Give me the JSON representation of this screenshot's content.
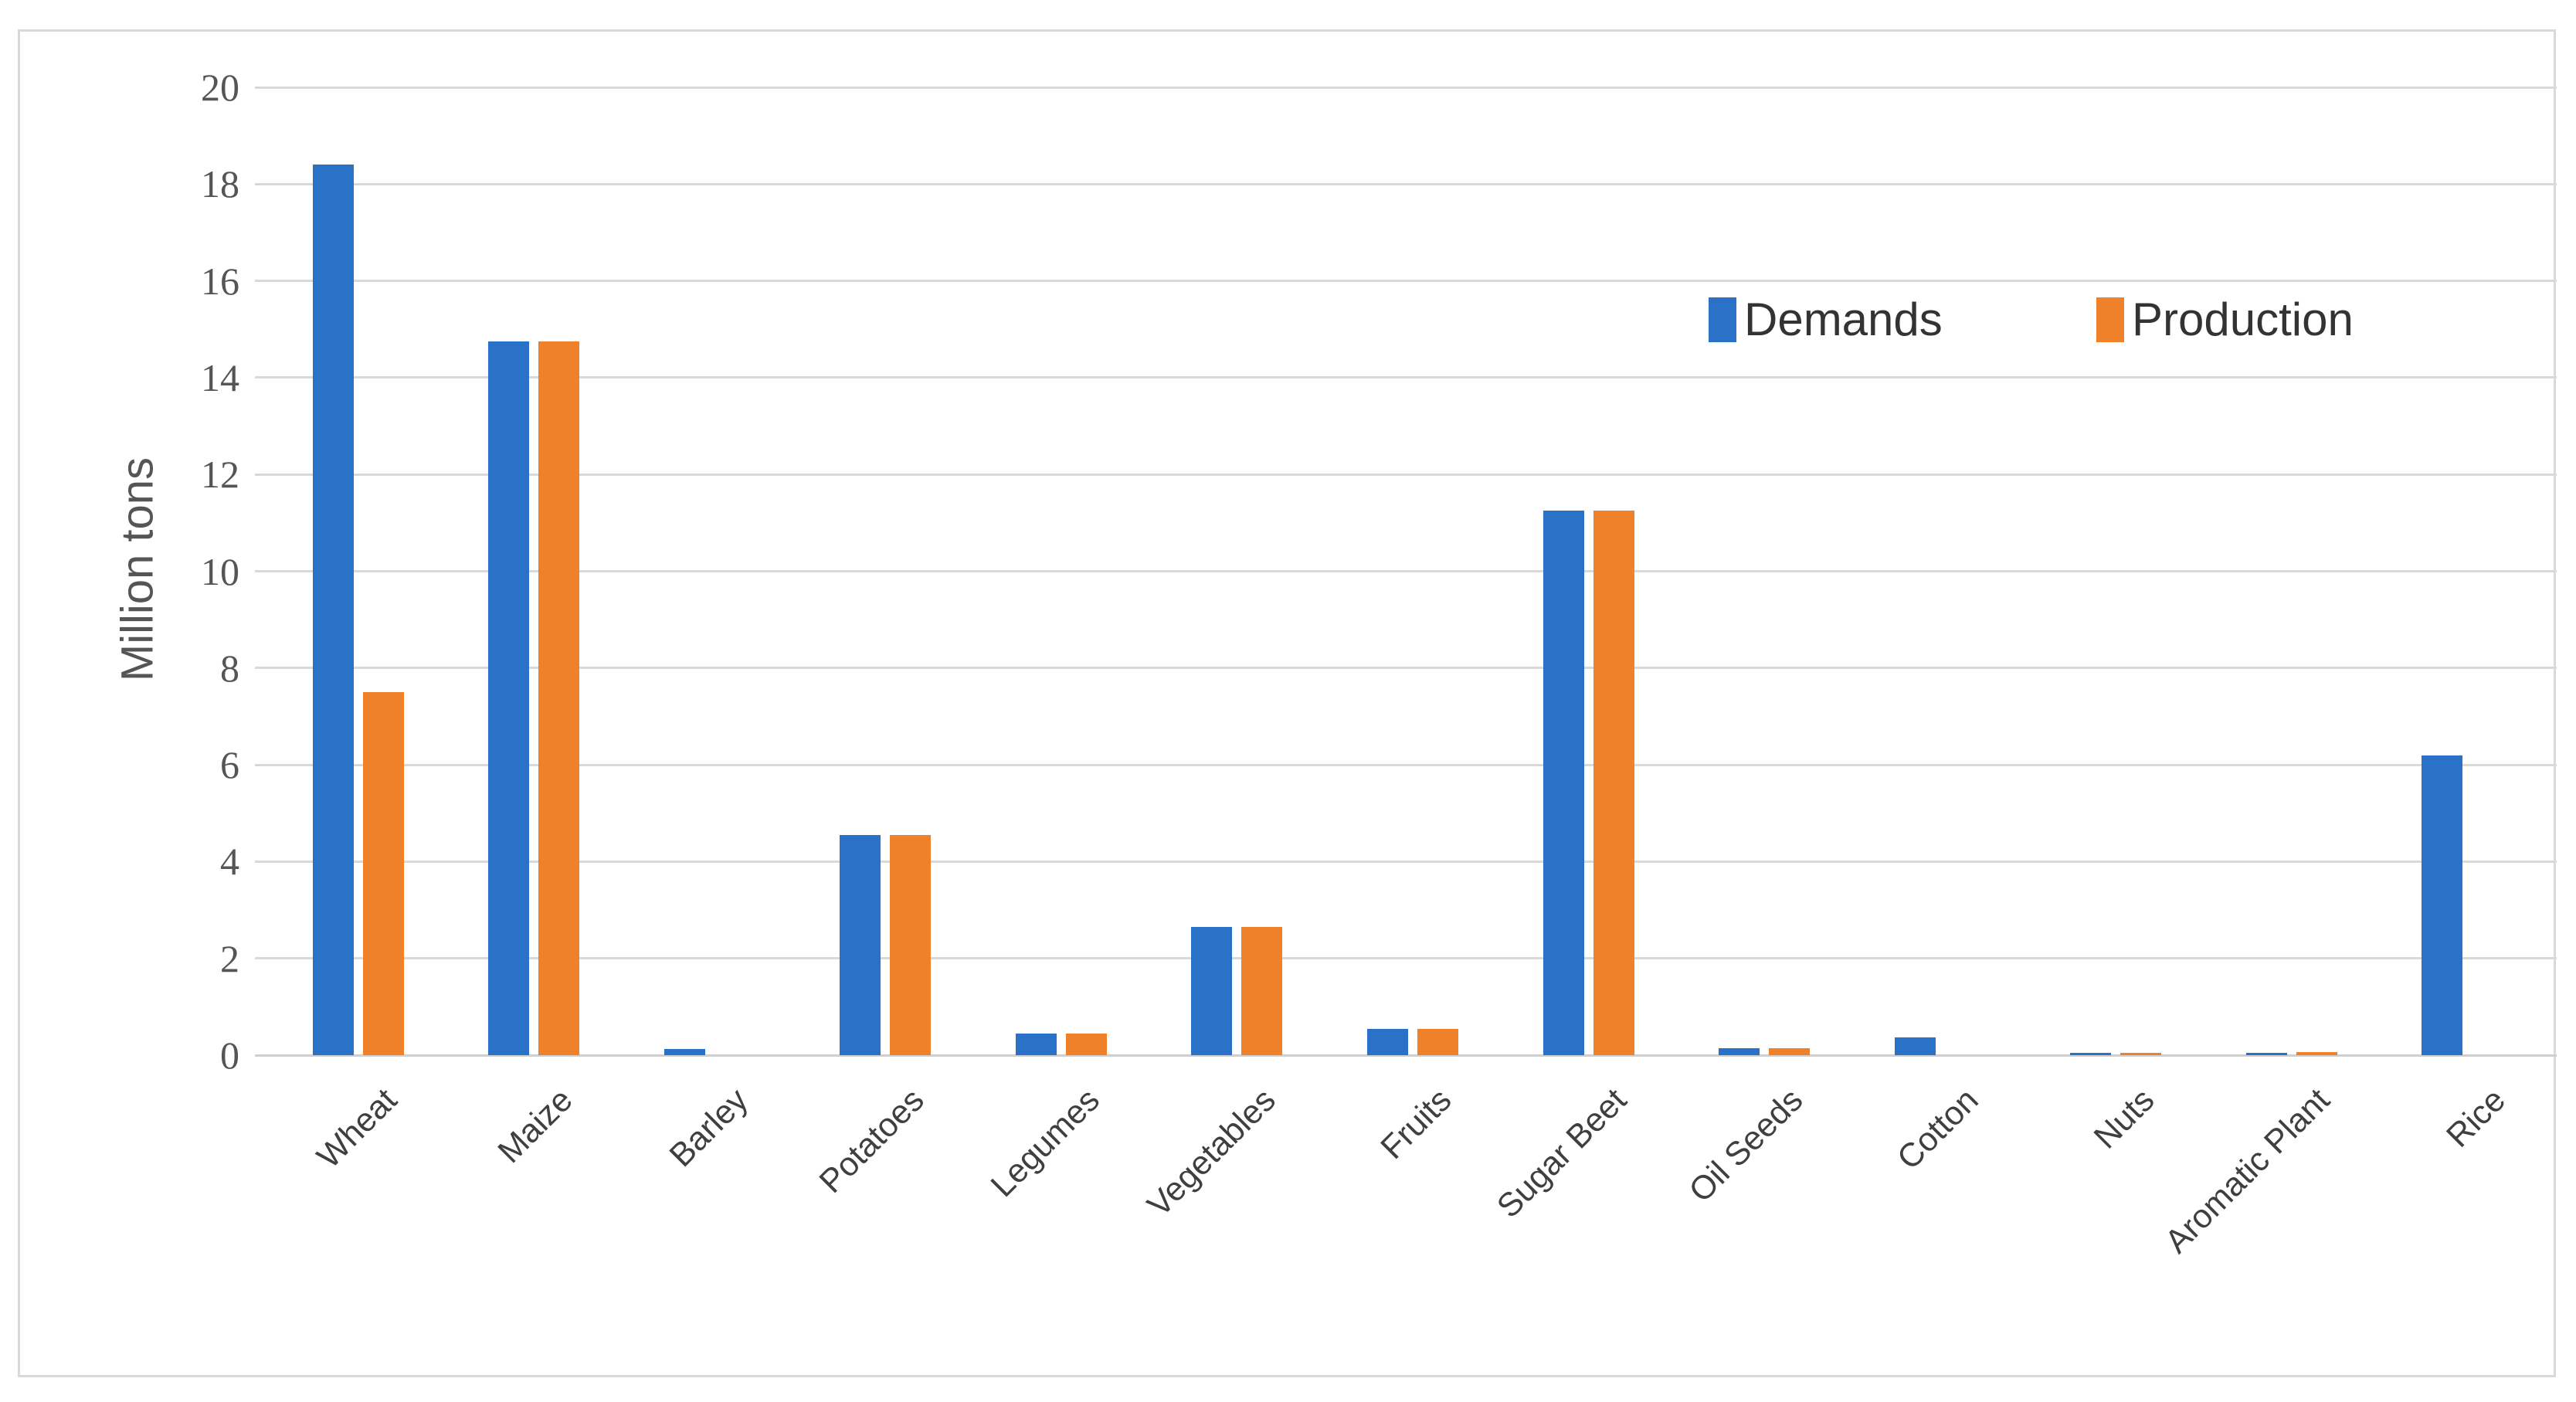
{
  "chart_data": {
    "type": "bar",
    "title": "",
    "ylabel": "Million tons",
    "xlabel": "",
    "ylim": [
      0,
      20
    ],
    "yticks": [
      0,
      2,
      4,
      6,
      8,
      10,
      12,
      14,
      16,
      18,
      20
    ],
    "grid": "horizontal",
    "gridline_color": "#D9D9D9",
    "legend_position": "top-right-inside",
    "categories": [
      "Wheat",
      "Maize",
      "Barley",
      "Potatoes",
      "Legumes",
      "Vegetables",
      "Fruits",
      "Sugar Beet",
      "Oil Seeds",
      "Cotton",
      "Nuts",
      "Aromatic Plant",
      "Rice"
    ],
    "series": [
      {
        "name": "Demands",
        "color": "#2A72C8",
        "values": [
          18.4,
          14.75,
          0.13,
          4.55,
          0.45,
          2.65,
          0.55,
          11.25,
          0.14,
          0.37,
          0.04,
          0.04,
          6.2
        ]
      },
      {
        "name": "Production",
        "color": "#F0812B",
        "values": [
          7.5,
          14.75,
          0,
          4.55,
          0.45,
          2.65,
          0.55,
          11.25,
          0.15,
          0,
          0.04,
          0.06,
          0
        ]
      }
    ]
  }
}
